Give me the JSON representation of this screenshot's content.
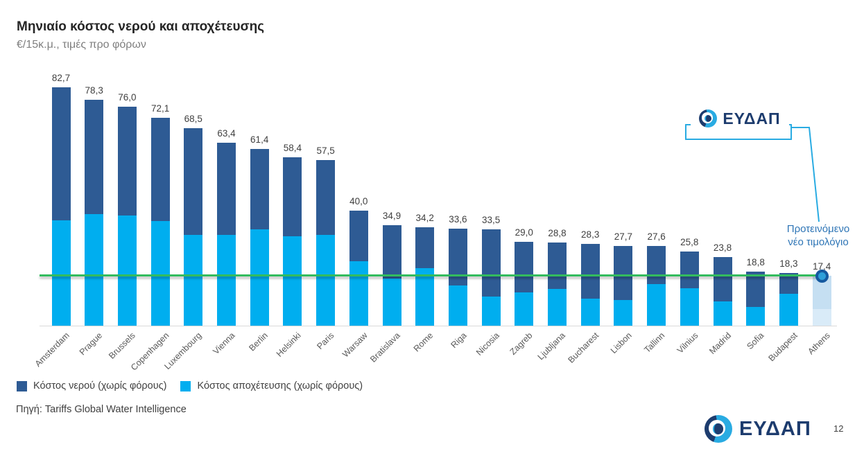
{
  "header": {
    "title": "Μηνιαίο κόστος νερού και αποχέτευσης",
    "subtitle": "€/15κ.μ., τιμές προ φόρων"
  },
  "colors": {
    "water": "#2E5B94",
    "sewage": "#00AEEF",
    "proposed_water": "#C5DFF2",
    "proposed_sewage": "#D9EBF8",
    "reference_line": "#33BC5E",
    "annotation_blue": "#2E75B6",
    "logo_navy": "#1D3C6E",
    "logo_light_blue": "#29ABE2"
  },
  "chart_data": {
    "type": "bar",
    "stacked": true,
    "title": "Μηνιαίο κόστος νερού και αποχέτευσης",
    "subtitle": "€/15κ.μ., τιμές προ φόρων",
    "xlabel": "",
    "ylabel": "€/15κ.μ.",
    "ylim": [
      0,
      90
    ],
    "grid": false,
    "legend_position": "bottom",
    "categories": [
      "Amsterdam",
      "Prague",
      "Brussels",
      "Copenhagen",
      "Luxembourg",
      "Vienna",
      "Berlin",
      "Helsinki",
      "Paris",
      "Warsaw",
      "Bratislava",
      "Rome",
      "Riga",
      "Nicosia",
      "Zagreb",
      "Ljubljana",
      "Bucharest",
      "Lisbon",
      "Tallinn",
      "Vilnius",
      "Madrid",
      "Sofia",
      "Budapest",
      "Athens"
    ],
    "totals": [
      82.7,
      78.3,
      76.0,
      72.1,
      68.5,
      63.4,
      61.4,
      58.4,
      57.5,
      40.0,
      34.9,
      34.2,
      33.6,
      33.5,
      29.0,
      28.8,
      28.3,
      27.7,
      27.6,
      25.8,
      23.8,
      18.8,
      18.3,
      17.4
    ],
    "total_labels": [
      "82,7",
      "78,3",
      "76,0",
      "72,1",
      "68,5",
      "63,4",
      "61,4",
      "58,4",
      "57,5",
      "40,0",
      "34,9",
      "34,2",
      "33,6",
      "33,5",
      "29,0",
      "28,8",
      "28,3",
      "27,7",
      "27,6",
      "25,8",
      "23,8",
      "18,8",
      "18,3",
      "17,4"
    ],
    "series": [
      {
        "name": "Κόστος νερού (χωρίς φόρους)",
        "color_key": "water",
        "values": [
          46.1,
          39.6,
          37.8,
          35.7,
          37.1,
          31.8,
          27.9,
          27.3,
          25.9,
          17.6,
          18.5,
          14.2,
          19.6,
          23.4,
          17.4,
          16.0,
          18.9,
          18.8,
          13.1,
          12.8,
          15.4,
          12.3,
          7.2,
          11.6
        ]
      },
      {
        "name": "Κόστος αποχέτευσης (χωρίς φόρους)",
        "color_key": "sewage",
        "values": [
          36.6,
          38.7,
          38.2,
          36.4,
          31.4,
          31.6,
          33.5,
          31.1,
          31.6,
          22.4,
          16.4,
          20.0,
          14.0,
          10.1,
          11.6,
          12.8,
          9.4,
          8.9,
          14.5,
          13.0,
          8.4,
          6.5,
          11.1,
          5.8
        ]
      }
    ],
    "highlight_category": "Athens",
    "reference_line": {
      "value": 17.4,
      "label": "17,4"
    },
    "annotation": {
      "line1": "Προτεινόμενο",
      "line2": "νέο τιμολόγιο"
    }
  },
  "legend_note": "series names double as legend labels",
  "source": "Πηγή: Tariffs Global Water Intelligence",
  "logo": {
    "text": "ΕΥΔΑΠ"
  },
  "page_number": "12"
}
